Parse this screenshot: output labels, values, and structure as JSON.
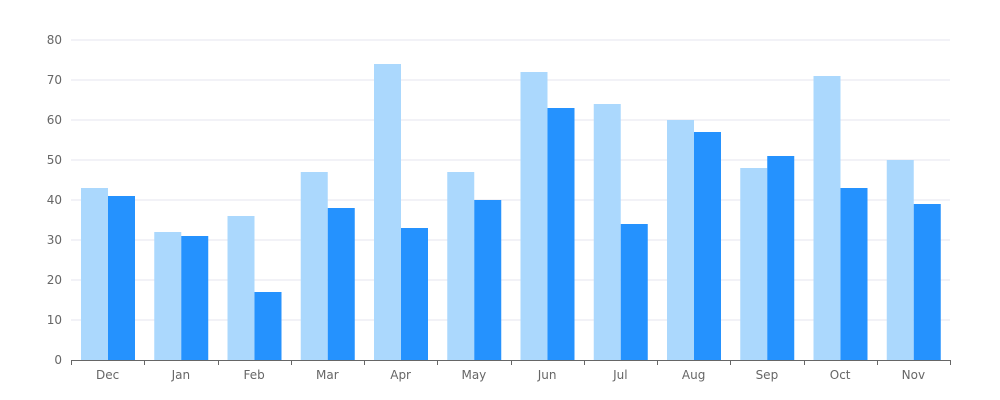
{
  "chart_data": {
    "type": "bar",
    "categories": [
      "Dec",
      "Jan",
      "Feb",
      "Mar",
      "Apr",
      "May",
      "Jun",
      "Jul",
      "Aug",
      "Sep",
      "Oct",
      "Nov"
    ],
    "series": [
      {
        "values": [
          43,
          32,
          36,
          47,
          74,
          47,
          72,
          64,
          60,
          48,
          71,
          50
        ],
        "color": "#abd8fd"
      },
      {
        "values": [
          41,
          31,
          17,
          38,
          33,
          40,
          63,
          34,
          57,
          51,
          43,
          39
        ],
        "color": "#2592fe"
      }
    ],
    "ylim": [
      0,
      80
    ],
    "yticks": [
      0,
      10,
      20,
      30,
      40,
      50,
      60,
      70,
      80
    ],
    "grid": true,
    "gridColor": "#e6e6ef",
    "axisColor": "#666666",
    "legend": "none"
  }
}
